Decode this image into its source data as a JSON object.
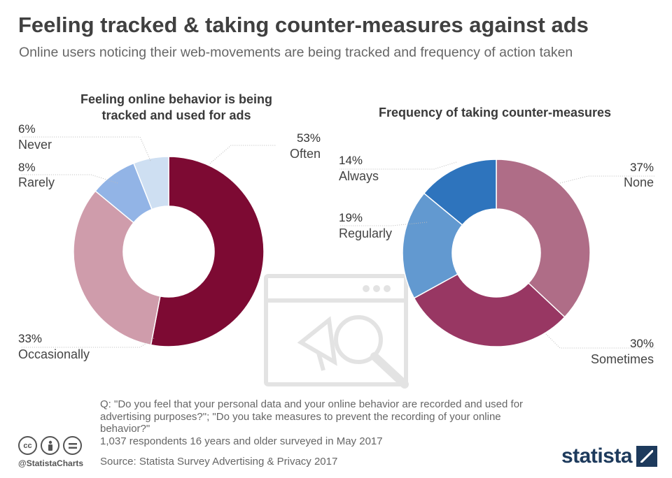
{
  "header": {
    "title": "Feeling tracked & taking counter-measures against ads",
    "subtitle": "Online users noticing their web-movements are being tracked and frequency of action taken"
  },
  "chart_data": [
    {
      "type": "pie",
      "donut": true,
      "title_lines": [
        "Feeling online behavior is being",
        "tracked and used for ads"
      ],
      "categories": [
        "Often",
        "Occasionally",
        "Rarely",
        "Never"
      ],
      "values": [
        53,
        33,
        8,
        6
      ],
      "value_labels": [
        "53%",
        "33%",
        "8%",
        "6%"
      ],
      "colors": [
        "#7d0a33",
        "#cf9cab",
        "#92b4e6",
        "#cedff2"
      ]
    },
    {
      "type": "pie",
      "donut": true,
      "title_lines": [
        "Frequency of taking counter-measures"
      ],
      "categories": [
        "None",
        "Sometimes",
        "Regularly",
        "Always"
      ],
      "values": [
        37,
        30,
        19,
        14
      ],
      "value_labels": [
        "37%",
        "30%",
        "19%",
        "14%"
      ],
      "colors": [
        "#af6d87",
        "#983763",
        "#6299d0",
        "#2e74bd"
      ]
    }
  ],
  "footer": {
    "question": "Q: \"Do you feel that your personal data and your online behavior are recorded and used for advertising purposes?\"; \"Do you take measures to prevent the recording of your online behavior?\"",
    "respondents": "1,037 respondents 16 years and older surveyed in May 2017",
    "source": "Source: Statista Survey Advertising & Privacy 2017",
    "handle": "@StatistaCharts",
    "brand": "statista",
    "license_icons": [
      "cc-icon",
      "attribution-icon",
      "no-derivatives-icon"
    ]
  }
}
